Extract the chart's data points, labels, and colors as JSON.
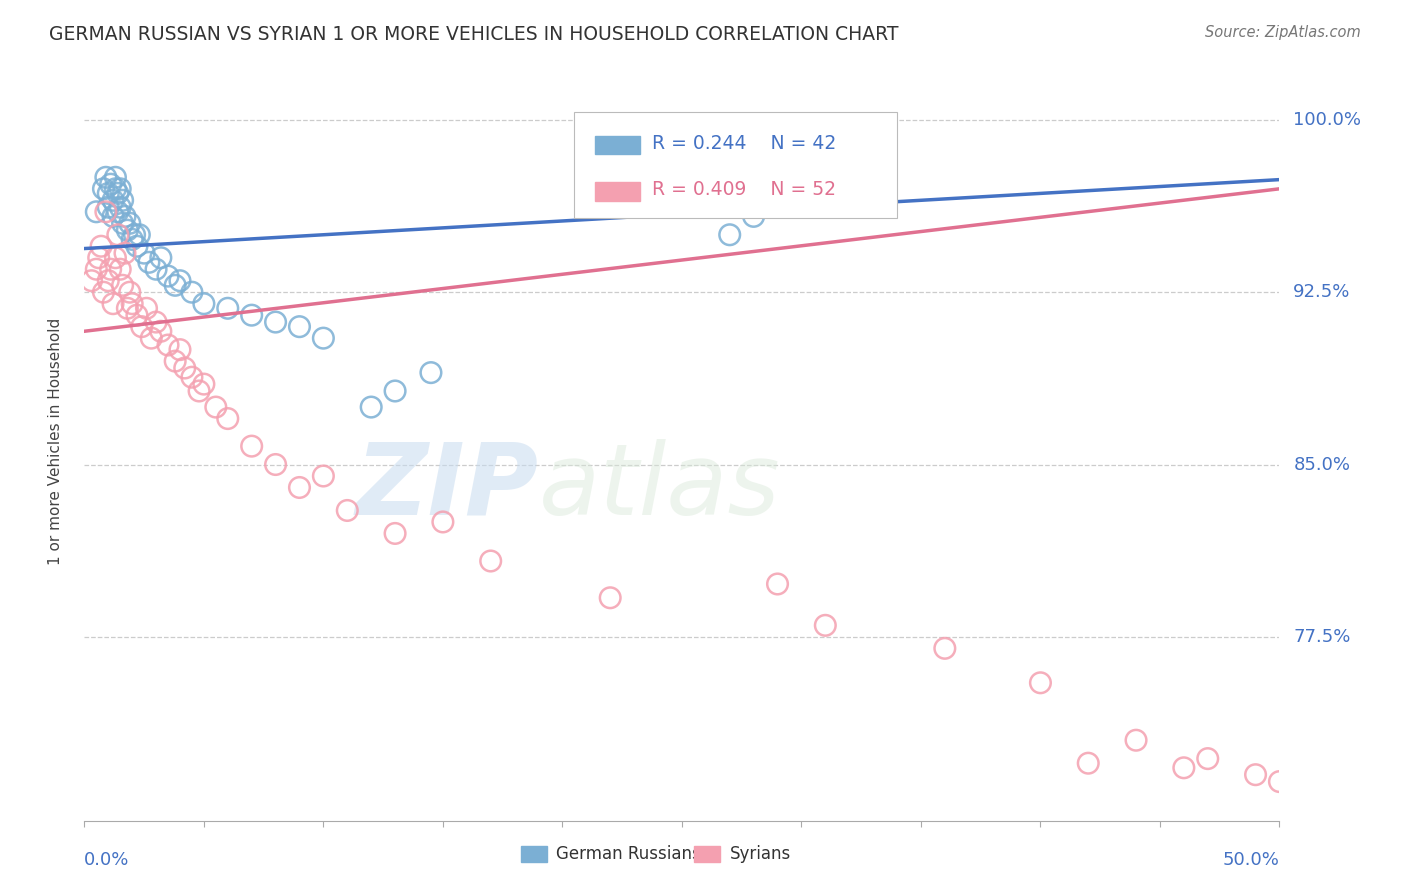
{
  "title": "GERMAN RUSSIAN VS SYRIAN 1 OR MORE VEHICLES IN HOUSEHOLD CORRELATION CHART",
  "source": "Source: ZipAtlas.com",
  "ylabel": "1 or more Vehicles in Household",
  "watermark_zip": "ZIP",
  "watermark_atlas": "atlas",
  "legend_text": [
    "German Russians",
    "Syrians"
  ],
  "legend_R": [
    "R = 0.244",
    "R = 0.409"
  ],
  "legend_N": [
    "N = 42",
    "N = 52"
  ],
  "ytick_labels": [
    "100.0%",
    "92.5%",
    "85.0%",
    "77.5%"
  ],
  "ytick_values": [
    1.0,
    0.925,
    0.85,
    0.775
  ],
  "xlim": [
    0.0,
    0.5
  ],
  "ylim": [
    0.695,
    1.025
  ],
  "blue_color": "#7BAFD4",
  "pink_color": "#F4A0B0",
  "blue_line_color": "#4472C4",
  "pink_line_color": "#E07090",
  "background_color": "#FFFFFF",
  "grid_color": "#CCCCCC",
  "title_color": "#333333",
  "axis_label_color": "#444444",
  "tick_label_color": "#4472C4",
  "german_russian_x": [
    0.005,
    0.008,
    0.009,
    0.01,
    0.01,
    0.011,
    0.012,
    0.012,
    0.013,
    0.013,
    0.014,
    0.014,
    0.015,
    0.015,
    0.016,
    0.016,
    0.017,
    0.018,
    0.019,
    0.02,
    0.021,
    0.022,
    0.023,
    0.025,
    0.027,
    0.03,
    0.032,
    0.035,
    0.038,
    0.04,
    0.045,
    0.05,
    0.06,
    0.07,
    0.08,
    0.09,
    0.1,
    0.12,
    0.13,
    0.145,
    0.27,
    0.28
  ],
  "german_russian_y": [
    0.96,
    0.97,
    0.975,
    0.962,
    0.968,
    0.972,
    0.958,
    0.965,
    0.97,
    0.975,
    0.96,
    0.968,
    0.962,
    0.97,
    0.955,
    0.965,
    0.958,
    0.952,
    0.955,
    0.948,
    0.95,
    0.945,
    0.95,
    0.942,
    0.938,
    0.935,
    0.94,
    0.932,
    0.928,
    0.93,
    0.925,
    0.92,
    0.918,
    0.915,
    0.912,
    0.91,
    0.905,
    0.875,
    0.882,
    0.89,
    0.95,
    0.958
  ],
  "syrian_x": [
    0.003,
    0.005,
    0.006,
    0.007,
    0.008,
    0.009,
    0.01,
    0.011,
    0.012,
    0.013,
    0.014,
    0.015,
    0.016,
    0.017,
    0.018,
    0.019,
    0.02,
    0.022,
    0.024,
    0.026,
    0.028,
    0.03,
    0.032,
    0.035,
    0.038,
    0.04,
    0.042,
    0.045,
    0.048,
    0.05,
    0.055,
    0.06,
    0.07,
    0.08,
    0.09,
    0.1,
    0.11,
    0.13,
    0.15,
    0.17,
    0.22,
    0.29,
    0.31,
    0.36,
    0.4,
    0.42,
    0.44,
    0.46,
    0.47,
    0.49,
    0.5,
    0.505
  ],
  "syrian_y": [
    0.93,
    0.935,
    0.94,
    0.945,
    0.925,
    0.96,
    0.93,
    0.935,
    0.92,
    0.94,
    0.95,
    0.935,
    0.928,
    0.942,
    0.918,
    0.925,
    0.92,
    0.915,
    0.91,
    0.918,
    0.905,
    0.912,
    0.908,
    0.902,
    0.895,
    0.9,
    0.892,
    0.888,
    0.882,
    0.885,
    0.875,
    0.87,
    0.858,
    0.85,
    0.84,
    0.845,
    0.83,
    0.82,
    0.825,
    0.808,
    0.792,
    0.798,
    0.78,
    0.77,
    0.755,
    0.72,
    0.73,
    0.718,
    0.722,
    0.715,
    0.712,
    0.708
  ]
}
